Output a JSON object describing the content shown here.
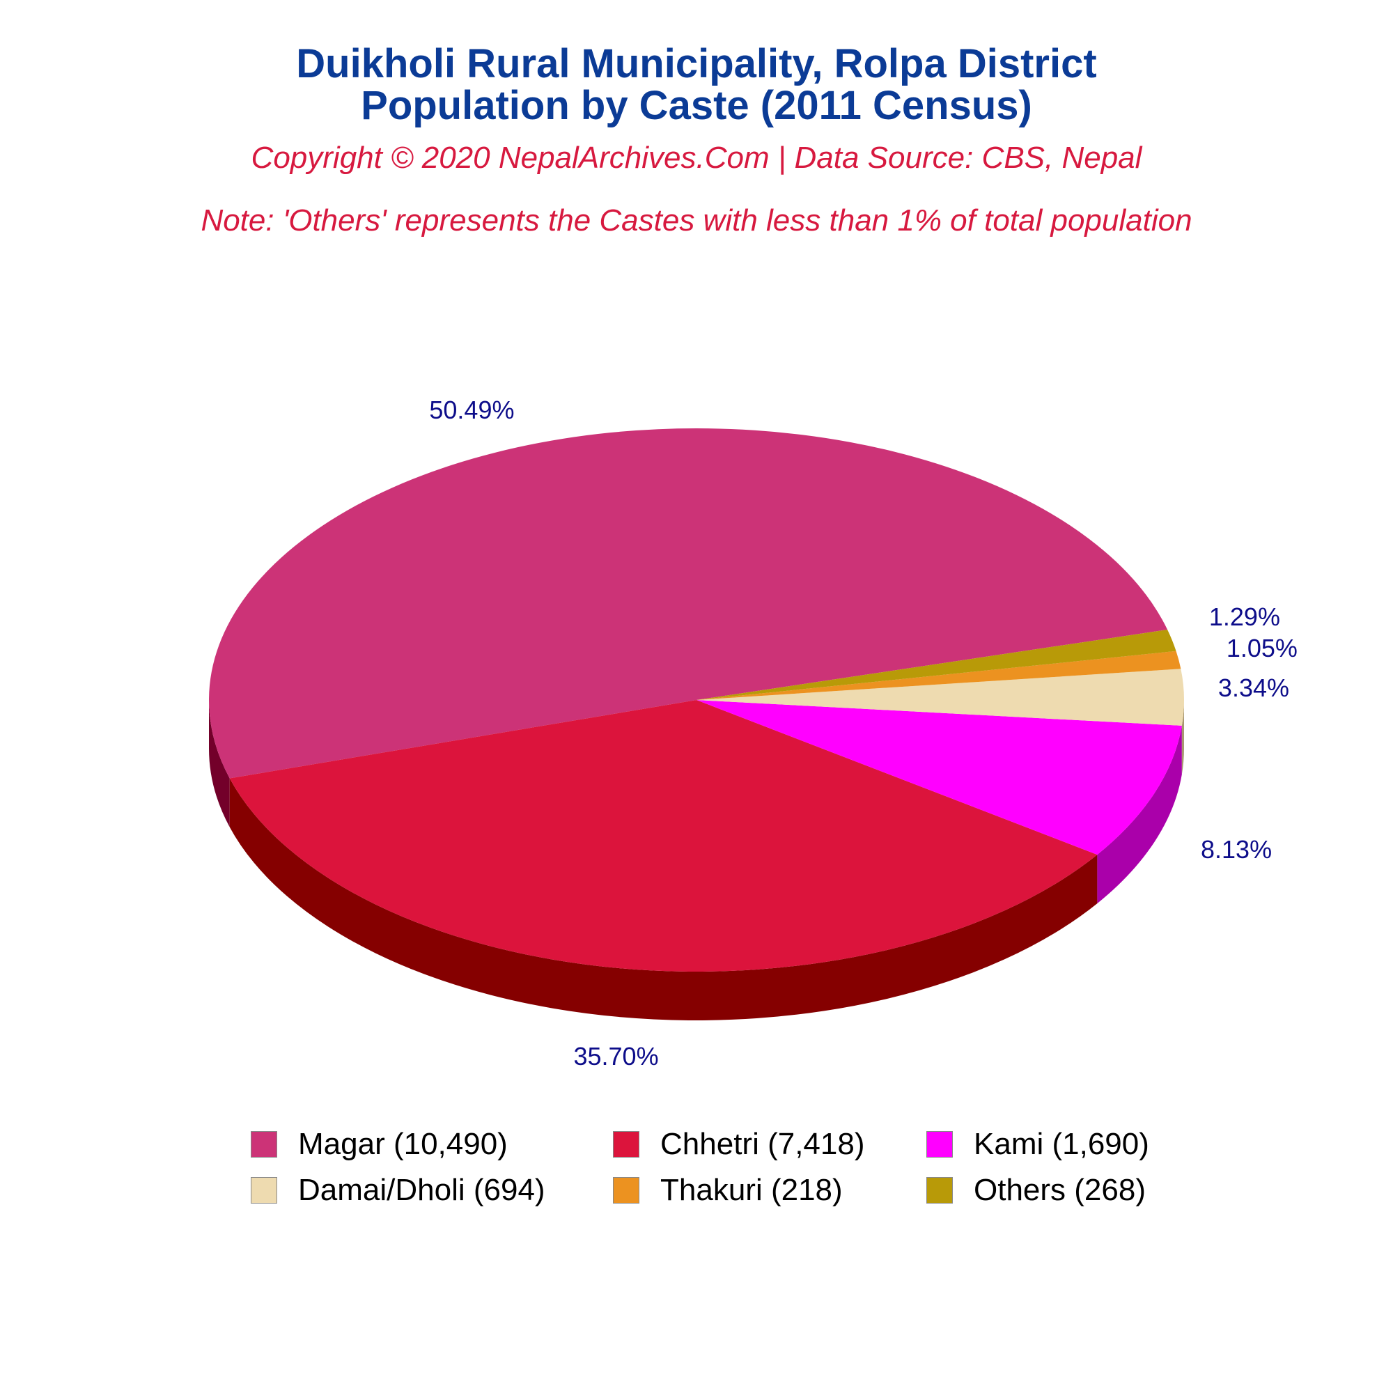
{
  "chart_data": {
    "type": "pie",
    "title_lines": [
      "Duikholi Rural Municipality, Rolpa District",
      "Population by Caste (2011 Census)"
    ],
    "subtitle": "Copyright © 2020 NepalArchives.Com | Data Source: CBS, Nepal",
    "note": "Note: 'Others' represents the Castes with less than 1% of total population",
    "legend_position": "bottom",
    "slices": [
      {
        "name": "Magar",
        "legend": "Magar (10,490)",
        "value": 10490,
        "percent_label": "50.49%",
        "color": "#cc3377",
        "side_color": "#73002a"
      },
      {
        "name": "Chhetri",
        "legend": "Chhetri (7,418)",
        "value": 7418,
        "percent_label": "35.70%",
        "color": "#dc143c",
        "side_color": "#850000"
      },
      {
        "name": "Kami",
        "legend": "Kami (1,690)",
        "value": 1690,
        "percent_label": "8.13%",
        "color": "#ff00ff",
        "side_color": "#aa00aa"
      },
      {
        "name": "Damai/Dholi",
        "legend": "Damai/Dholi (694)",
        "value": 694,
        "percent_label": "3.34%",
        "color": "#eedbb0",
        "side_color": "#a89770"
      },
      {
        "name": "Thakuri",
        "legend": "Thakuri (218)",
        "value": 218,
        "percent_label": "1.05%",
        "color": "#ec9220",
        "side_color": "#9a5a10"
      },
      {
        "name": "Others",
        "legend": "Others (268)",
        "value": 268,
        "percent_label": "1.29%",
        "color": "#b89a08",
        "side_color": "#6e5c04"
      }
    ]
  }
}
